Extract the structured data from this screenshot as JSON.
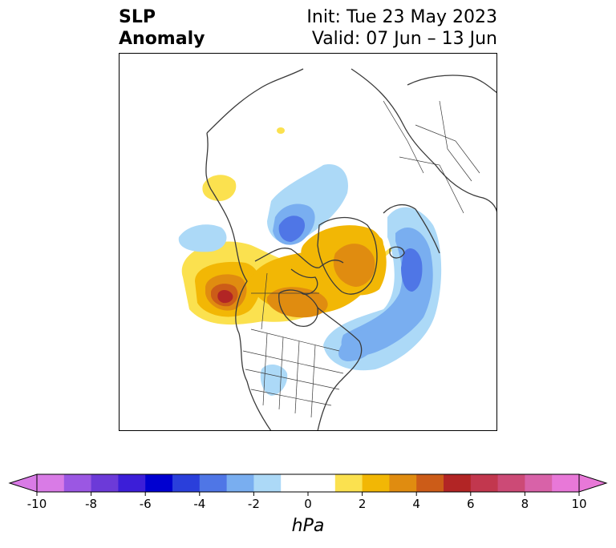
{
  "title": {
    "left_line1": "SLP",
    "left_line2": "Anomaly",
    "right_line1": "Init: Tue 23 May 2023",
    "right_line2": "Valid: 07 Jun – 13 Jun"
  },
  "map": {
    "projection": "north polar stereographic",
    "region": "North America / Greenland / Arctic",
    "features": [
      {
        "name": "high-west-coast",
        "sign": "positive",
        "peak_hPa": 7
      },
      {
        "name": "high-hudson-bay",
        "sign": "positive",
        "peak_hPa": 4
      },
      {
        "name": "high-greenland",
        "sign": "positive",
        "peak_hPa": 4
      },
      {
        "name": "high-alaska-small",
        "sign": "positive",
        "peak_hPa": 1
      },
      {
        "name": "high-arctic-speck",
        "sign": "positive",
        "peak_hPa": 1
      },
      {
        "name": "low-arctic-ocean",
        "sign": "negative",
        "peak_hPa": -4
      },
      {
        "name": "low-east-greenland",
        "sign": "negative",
        "peak_hPa": -3
      },
      {
        "name": "low-north-atlantic",
        "sign": "negative",
        "peak_hPa": -2
      },
      {
        "name": "low-north-pacific",
        "sign": "negative",
        "peak_hPa": -1
      },
      {
        "name": "low-us-southwest",
        "sign": "negative",
        "peak_hPa": -1
      }
    ]
  },
  "colorbar": {
    "unit": "hPa",
    "ticks": [
      "-10",
      "-8",
      "-6",
      "-4",
      "-2",
      "0",
      "2",
      "4",
      "6",
      "8",
      "10"
    ],
    "colors": [
      "#d97be6",
      "#9b57e3",
      "#6c3ad8",
      "#3c1ed8",
      "#0000d0",
      "#2a3fdb",
      "#4f76e6",
      "#79aef0",
      "#acd9f7",
      "#ffffff",
      "#ffffff",
      "#fbe14f",
      "#f2b705",
      "#e08c10",
      "#cc5c18",
      "#b22525",
      "#c2374e",
      "#cc4a76",
      "#d862a8",
      "#e878d8"
    ],
    "extend_low": "#d97be6",
    "extend_high": "#e878d8"
  }
}
